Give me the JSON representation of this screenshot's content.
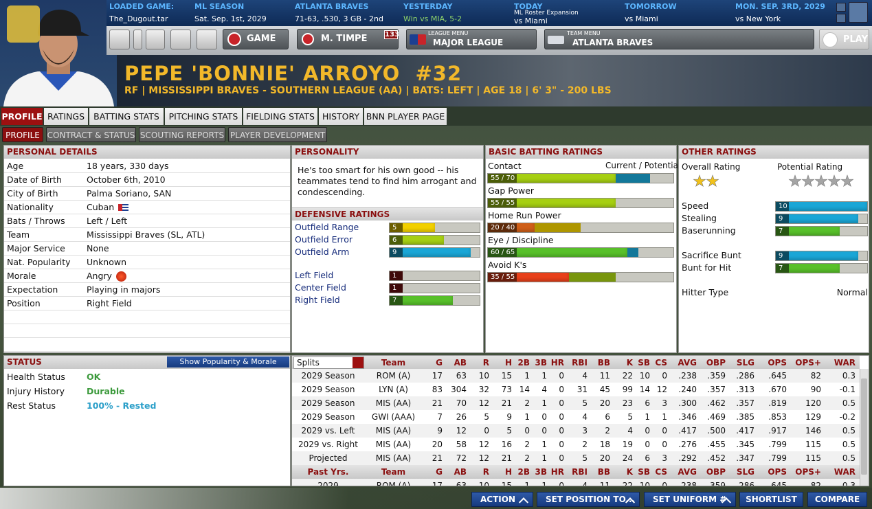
{
  "header": {
    "info": [
      {
        "label": "LOADED GAME:",
        "value": "The_Dugout.tar"
      },
      {
        "label": "ML SEASON",
        "value": "Sat. Sep. 1st, 2029"
      },
      {
        "label": "ATLANTA BRAVES",
        "value": "71-63, .530, 3 GB - 2nd"
      },
      {
        "label": "YESTERDAY",
        "value": "Win vs MIA, 5-2"
      },
      {
        "label": "TODAY",
        "sub": "ML Roster Expansion",
        "value": "vs Miami"
      },
      {
        "label": "TOMORROW",
        "value": "vs Miami"
      },
      {
        "label": "MON. SEP. 3RD, 2029",
        "value": "vs New York"
      }
    ],
    "nav": {
      "game": "GAME",
      "manager": "M. TIMPE",
      "badge": 133,
      "league_caption": "LEAGUE MENU",
      "league": "MAJOR LEAGUE",
      "team_caption": "TEAM MENU",
      "team": "ATLANTA BRAVES",
      "play": "PLAY"
    }
  },
  "player": {
    "name": "PEPE 'BONNIE' ARROYO  #32",
    "details": "RF | MISSISSIPPI BRAVES - SOUTHERN LEAGUE (AA) | BATS: LEFT | AGE 18 | 6' 3\" - 200 LBS"
  },
  "tabs": [
    "PROFILE",
    "RATINGS",
    "BATTING STATS",
    "PITCHING STATS",
    "FIELDING STATS",
    "HISTORY",
    "BNN PLAYER PAGE"
  ],
  "subtabs": [
    "PROFILE",
    "CONTRACT & STATUS",
    "SCOUTING REPORTS",
    "PLAYER DEVELOPMENT"
  ],
  "personal_details": {
    "title": "PERSONAL DETAILS",
    "rows": [
      [
        "Age",
        "18 years, 330 days"
      ],
      [
        "Date of Birth",
        "October 6th, 2010"
      ],
      [
        "City of Birth",
        "Palma Soriano, SAN"
      ],
      [
        "Nationality",
        "Cuban"
      ],
      [
        "Bats / Throws",
        "Left / Left"
      ],
      [
        "Team",
        "Mississippi Braves (SL, ATL)"
      ],
      [
        "Major Service",
        "None"
      ],
      [
        "Nat. Popularity",
        "Unknown"
      ],
      [
        "Morale",
        "Angry"
      ],
      [
        "Expectation",
        "Playing in majors"
      ],
      [
        "Position",
        "Right Field"
      ]
    ]
  },
  "status": {
    "title": "STATUS",
    "button": "Show Popularity & Morale",
    "rows": [
      [
        "Health Status",
        "OK"
      ],
      [
        "Injury History",
        "Durable"
      ],
      [
        "Rest Status",
        "100% - Rested"
      ]
    ]
  },
  "personality": {
    "title": "PERSONALITY",
    "text": "He's too smart for his own good -- his teammates tend to find him arrogant and condescending."
  },
  "defensive_ratings": {
    "title": "DEFENSIVE RATINGS",
    "scale": [
      0,
      10
    ],
    "rows": [
      {
        "label": "Outfield Range",
        "value": 5
      },
      {
        "label": "Outfield Error",
        "value": 6
      },
      {
        "label": "Outfield Arm",
        "value": 9
      },
      {
        "label": "Left Field",
        "value": 1
      },
      {
        "label": "Center Field",
        "value": 1
      },
      {
        "label": "Right Field",
        "value": 7
      }
    ]
  },
  "batting_ratings": {
    "title": "BASIC BATTING RATINGS",
    "legend": "Current / Potential",
    "scale": [
      0,
      80
    ],
    "rows": [
      {
        "label": "Contact",
        "current": 55,
        "potential": 70,
        "value_label": "55 / 70"
      },
      {
        "label": "Gap Power",
        "current": 55,
        "potential": 55,
        "value_label": "55 / 55"
      },
      {
        "label": "Home Run Power",
        "current": 20,
        "potential": 40,
        "value_label": "20 / 40"
      },
      {
        "label": "Eye / Discipline",
        "current": 60,
        "potential": 65,
        "value_label": "60 / 65"
      },
      {
        "label": "Avoid K's",
        "current": 35,
        "potential": 55,
        "value_label": "35 / 55"
      }
    ]
  },
  "other_ratings": {
    "title": "OTHER RATINGS",
    "overall_label": "Overall Rating",
    "overall_stars": 2,
    "potential_label": "Potential Rating",
    "potential_stars": 5,
    "scale": [
      0,
      10
    ],
    "rows": [
      {
        "label": "Speed",
        "value": 10
      },
      {
        "label": "Stealing",
        "value": 9
      },
      {
        "label": "Baserunning",
        "value": 7
      },
      {
        "label": "Sacrifice Bunt",
        "value": 9
      },
      {
        "label": "Bunt for Hit",
        "value": 7
      }
    ],
    "hitter_type_label": "Hitter Type",
    "hitter_type": "Normal"
  },
  "stats": {
    "header": [
      "Splits",
      "Team",
      "G",
      "AB",
      "R",
      "H",
      "2B",
      "3B",
      "HR",
      "RBI",
      "BB",
      "K",
      "SB",
      "CS",
      "AVG",
      "OBP",
      "SLG",
      "OPS",
      "OPS+",
      "WAR"
    ],
    "rows": [
      [
        "2029 Season",
        "ROM (A)",
        17,
        63,
        10,
        15,
        1,
        1,
        0,
        4,
        11,
        22,
        10,
        0,
        ".238",
        ".359",
        ".286",
        ".645",
        82,
        0.3
      ],
      [
        "2029 Season",
        "LYN (A)",
        83,
        304,
        32,
        73,
        14,
        4,
        0,
        31,
        45,
        99,
        14,
        12,
        ".240",
        ".357",
        ".313",
        ".670",
        90,
        -0.1
      ],
      [
        "2029 Season",
        "MIS (AA)",
        21,
        70,
        12,
        21,
        2,
        1,
        0,
        5,
        20,
        23,
        6,
        3,
        ".300",
        ".462",
        ".357",
        ".819",
        120,
        0.5
      ],
      [
        "2029 Season",
        "GWI (AAA)",
        7,
        26,
        5,
        9,
        1,
        0,
        0,
        4,
        6,
        5,
        1,
        1,
        ".346",
        ".469",
        ".385",
        ".853",
        129,
        -0.2
      ],
      [
        "2029 vs. Left",
        "MIS (AA)",
        9,
        12,
        0,
        5,
        0,
        0,
        0,
        3,
        2,
        4,
        0,
        0,
        ".417",
        ".500",
        ".417",
        ".917",
        146,
        0.5
      ],
      [
        "2029 vs. Right",
        "MIS (AA)",
        20,
        58,
        12,
        16,
        2,
        1,
        0,
        2,
        18,
        19,
        0,
        0,
        ".276",
        ".455",
        ".345",
        ".799",
        115,
        0.5
      ],
      [
        "Projected",
        "MIS (AA)",
        21,
        72,
        12,
        21,
        2,
        1,
        0,
        5,
        20,
        24,
        6,
        3,
        ".292",
        ".452",
        ".347",
        ".799",
        115,
        0.5
      ]
    ],
    "header2": [
      "Past Yrs.",
      "Team",
      "G",
      "AB",
      "R",
      "H",
      "2B",
      "3B",
      "HR",
      "RBI",
      "BB",
      "K",
      "SB",
      "CS",
      "AVG",
      "OBP",
      "SLG",
      "OPS",
      "OPS+",
      "WAR"
    ],
    "rows2": [
      [
        "2029",
        "ROM (A)",
        17,
        63,
        10,
        15,
        1,
        1,
        0,
        4,
        11,
        22,
        10,
        0,
        ".238",
        ".359",
        ".286",
        ".645",
        82,
        0.3
      ]
    ]
  },
  "actions": [
    "ACTION",
    "SET POSITION TO...",
    "SET UNIFORM #",
    "SHORTLIST",
    "COMPARE"
  ]
}
